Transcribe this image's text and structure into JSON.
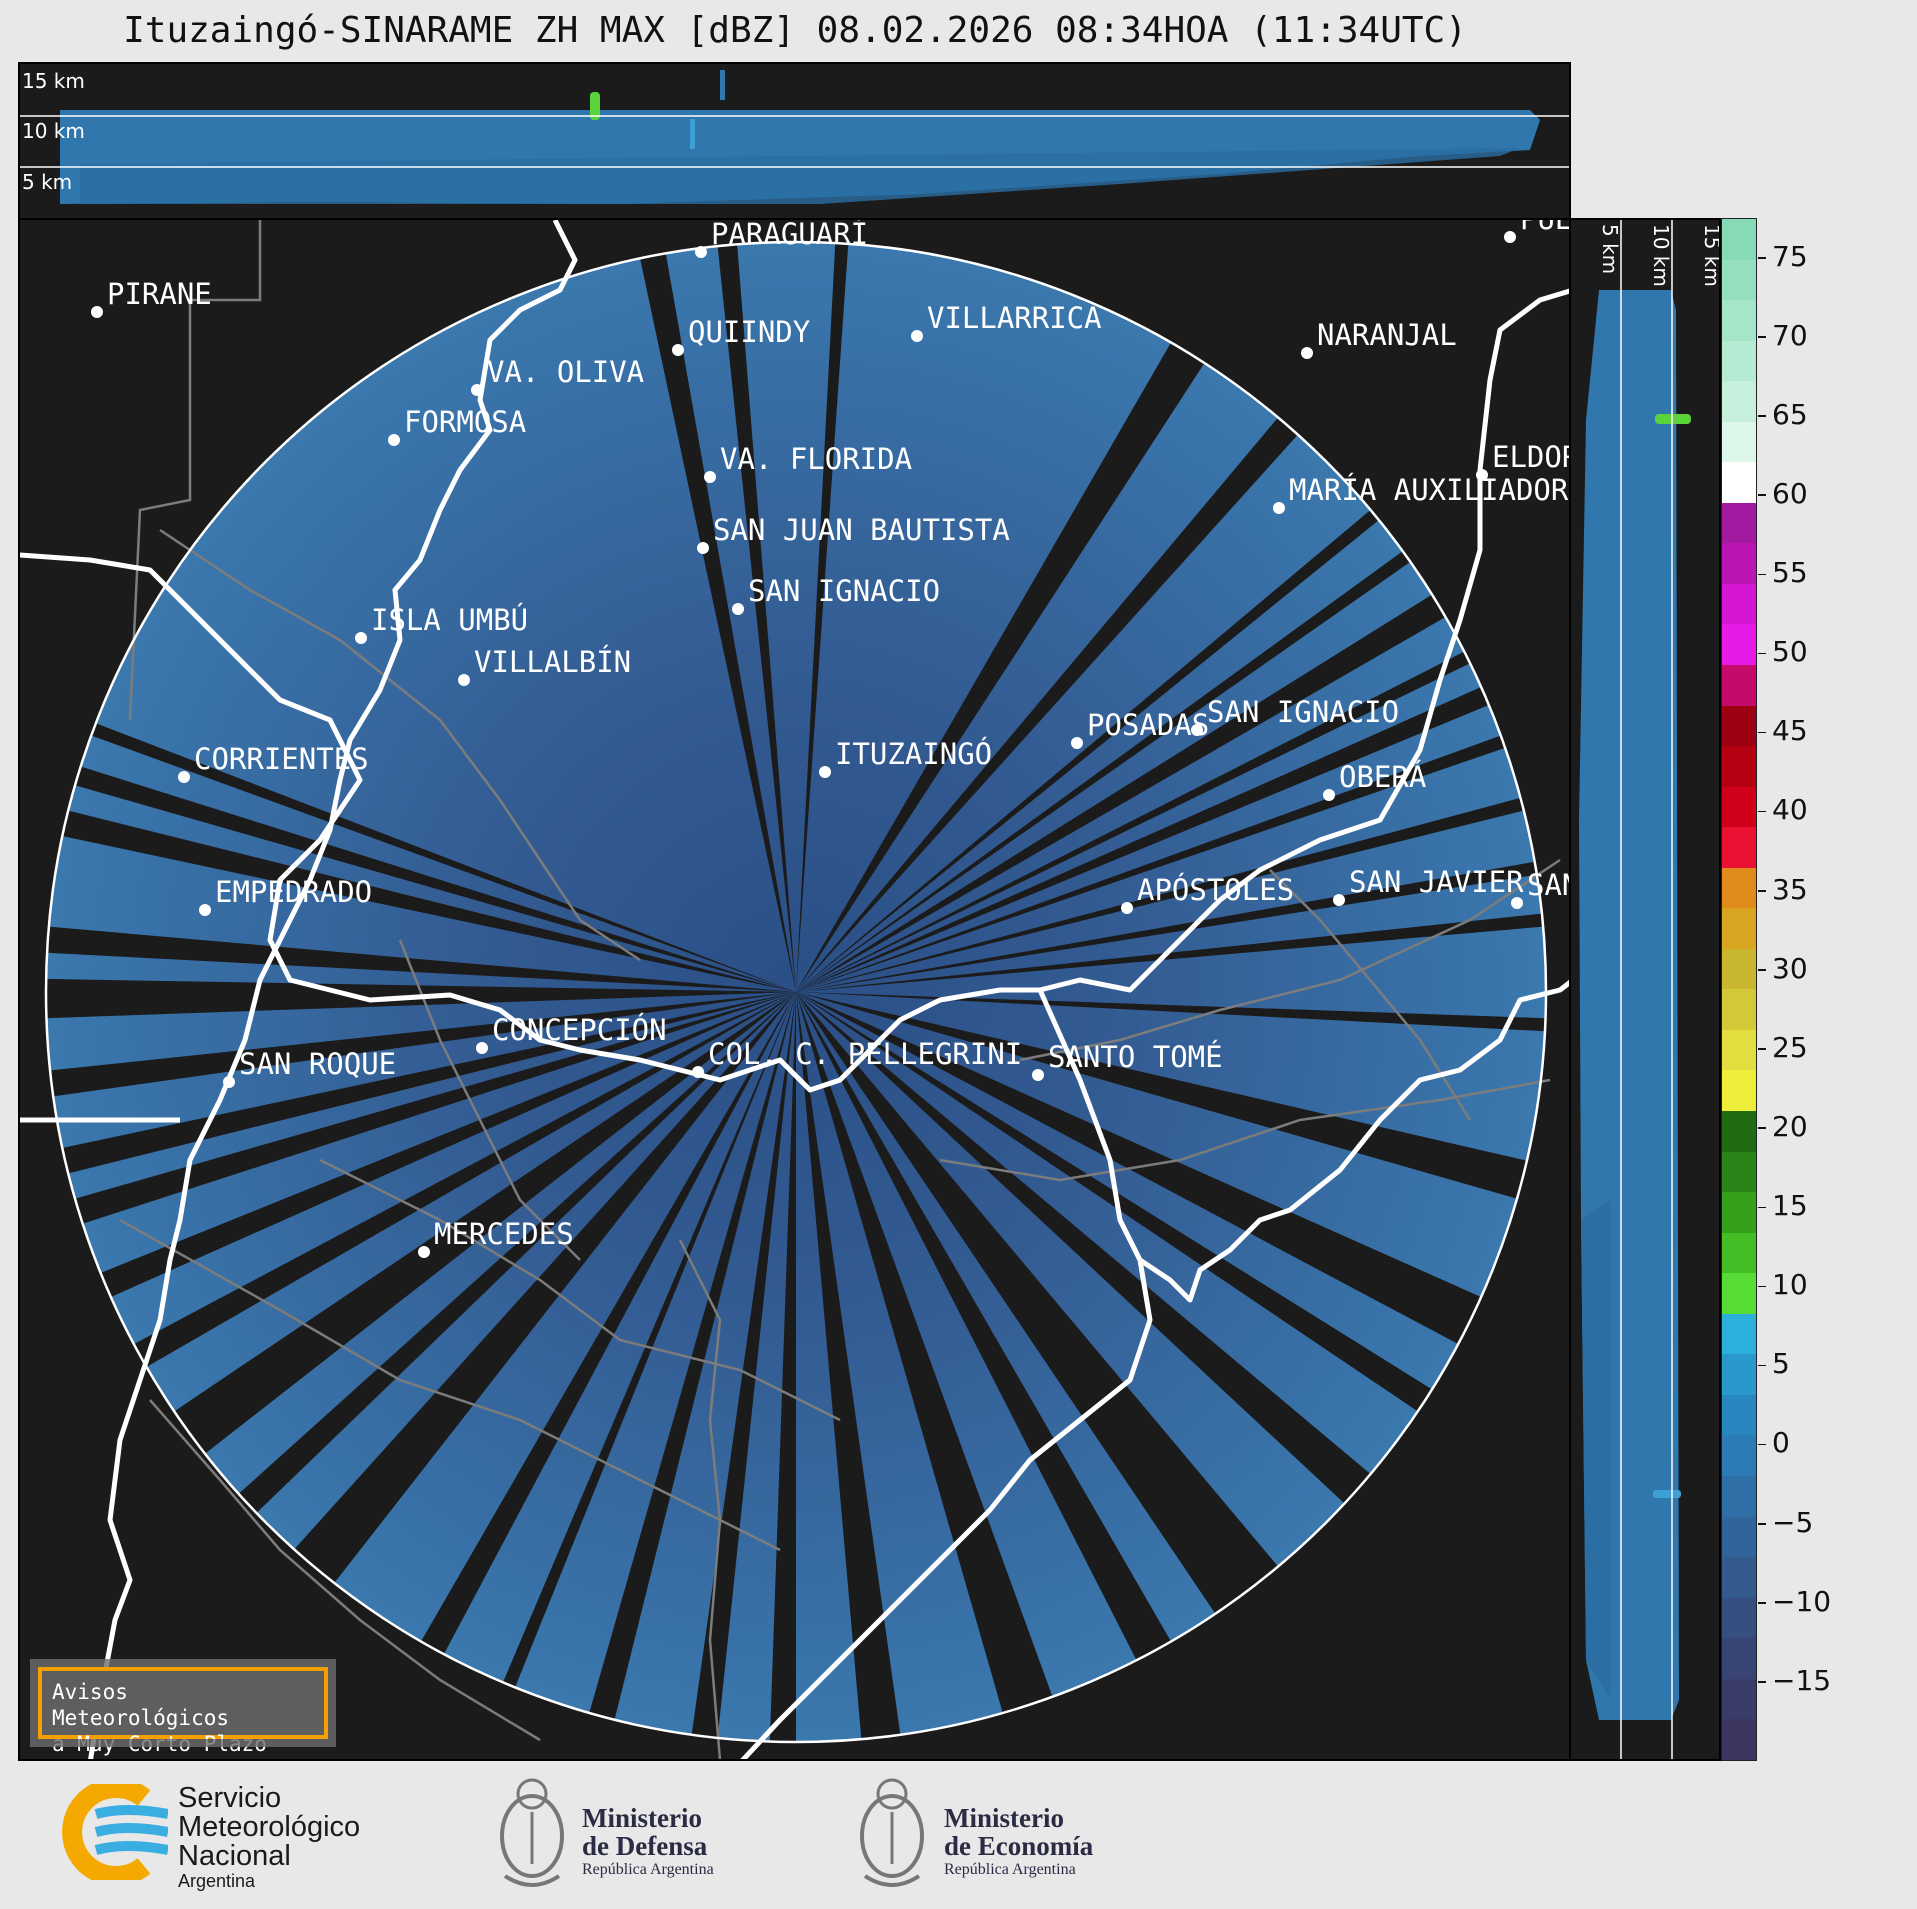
{
  "title": "Ituzaingó-SINARAME ZH MAX [dBZ] 08.02.2026 08:34HOA (11:34UTC)",
  "radar": {
    "name": "ITUZAINGÓ"
  },
  "top_xsec": {
    "levels": [
      "15 km",
      "10 km",
      "5 km"
    ]
  },
  "right_xsec": {
    "levels": [
      "5 km",
      "10 km",
      "15 km"
    ]
  },
  "cities": [
    {
      "name": "PARAGUARÍ"
    },
    {
      "name": "VILLARRICA"
    },
    {
      "name": "PIRANE"
    },
    {
      "name": "QUIINDY"
    },
    {
      "name": "VA. OLIVA"
    },
    {
      "name": "FORMOSA"
    },
    {
      "name": "NARANJAL"
    },
    {
      "name": "VA. FLORIDA"
    },
    {
      "name": "ELDOR"
    },
    {
      "name": "MARÍA AUXILIADOR"
    },
    {
      "name": "SAN JUAN BAUTISTA"
    },
    {
      "name": "SAN IGNACIO"
    },
    {
      "name": "ISLA UMBÚ"
    },
    {
      "name": "VILLALBÍN"
    },
    {
      "name": "SAN IGNACIO"
    },
    {
      "name": "POSADAS"
    },
    {
      "name": "CORRIENTES"
    },
    {
      "name": "ITUZAINGÓ"
    },
    {
      "name": "OBERÁ"
    },
    {
      "name": "PUE"
    },
    {
      "name": "EMPEDRADO"
    },
    {
      "name": "APÓSTOLES"
    },
    {
      "name": "SAN JAVIER"
    },
    {
      "name": "SAN"
    },
    {
      "name": "CONCEPCIÓN"
    },
    {
      "name": "COL. C. PELLEGRINI"
    },
    {
      "name": "SANTO TOMÉ"
    },
    {
      "name": "SAN ROQUE"
    },
    {
      "name": "MERCEDES"
    }
  ],
  "colorbar": {
    "ticks": [
      "75",
      "70",
      "65",
      "60",
      "55",
      "50",
      "45",
      "40",
      "35",
      "30",
      "25",
      "20",
      "15",
      "10",
      "5",
      "0",
      "−5",
      "−10",
      "−15"
    ],
    "colors": [
      "#86dbb6",
      "#94e0be",
      "#a5e6c8",
      "#b5ebd2",
      "#c6f0dc",
      "#dcf6ea",
      "#ffffff",
      "#a21aa0",
      "#bb15b5",
      "#d416d2",
      "#e81be6",
      "#c40a6a",
      "#9d0011",
      "#b50011",
      "#d0001b",
      "#ea1132",
      "#e08a1b",
      "#d8a521",
      "#c8b62e",
      "#d2c838",
      "#e2de40",
      "#eeee3a",
      "#216c13",
      "#2a8417",
      "#35a01c",
      "#44bd25",
      "#56dc35",
      "#2ab0da",
      "#2898cd",
      "#2987c0",
      "#2c7ab6",
      "#2e6fa8",
      "#31649a",
      "#335a8d",
      "#364f80",
      "#384574",
      "#3a3c69",
      "#3b355f"
    ],
    "vmin": -20,
    "vmax": 77.5
  },
  "avisos": {
    "line1": "Avisos Meteorológicos",
    "line2": "a Muy Corto Plazo"
  },
  "logos": {
    "smn": {
      "line1": "Servicio",
      "line2": "Meteorológico",
      "line3": "Nacional",
      "line4": "Argentina"
    },
    "defensa": {
      "line1": "Ministerio",
      "line2": "de Defensa",
      "line3": "República Argentina"
    },
    "economia": {
      "line1": "Ministerio",
      "line2": "de Economía",
      "line3": "República Argentina"
    }
  }
}
